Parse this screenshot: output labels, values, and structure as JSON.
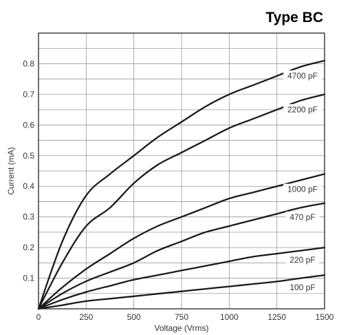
{
  "chart_data": {
    "type": "line",
    "title": "Type BC",
    "xlabel": "Voltage (Vrms)",
    "ylabel": "Current (mA)",
    "xlim": [
      0,
      1500
    ],
    "ylim": [
      0,
      0.9
    ],
    "xticks": [
      0,
      250,
      500,
      750,
      1000,
      1250,
      1500
    ],
    "xtick_labels": [
      "0",
      "250",
      "500",
      "750",
      "1000",
      "1250",
      "1500"
    ],
    "yticks": [
      0.1,
      0.2,
      0.3,
      0.4,
      0.5,
      0.6,
      0.7,
      0.8
    ],
    "ytick_labels": [
      "0.1",
      "0.2",
      "0.3",
      "0.4",
      "0.5",
      "0.6",
      "0.7",
      "0.8"
    ],
    "grid": true,
    "x": [
      0,
      125,
      250,
      375,
      500,
      625,
      750,
      875,
      1000,
      1125,
      1250,
      1375,
      1500
    ],
    "series": [
      {
        "name": "4700 pF",
        "values": [
          0,
          0.22,
          0.37,
          0.44,
          0.5,
          0.56,
          0.61,
          0.66,
          0.7,
          0.73,
          0.76,
          0.79,
          0.81
        ]
      },
      {
        "name": "2200 pF",
        "values": [
          0,
          0.15,
          0.27,
          0.33,
          0.41,
          0.47,
          0.51,
          0.55,
          0.59,
          0.62,
          0.65,
          0.68,
          0.7
        ]
      },
      {
        "name": "1000 pF",
        "values": [
          0,
          0.07,
          0.13,
          0.18,
          0.23,
          0.27,
          0.3,
          0.33,
          0.36,
          0.38,
          0.4,
          0.42,
          0.44
        ]
      },
      {
        "name": "470 pF",
        "values": [
          0,
          0.05,
          0.09,
          0.12,
          0.15,
          0.19,
          0.22,
          0.25,
          0.27,
          0.29,
          0.31,
          0.33,
          0.345
        ]
      },
      {
        "name": "220 pF",
        "values": [
          0,
          0.03,
          0.055,
          0.075,
          0.095,
          0.11,
          0.125,
          0.14,
          0.155,
          0.17,
          0.18,
          0.19,
          0.2
        ]
      },
      {
        "name": "100 pF",
        "values": [
          0,
          0.012,
          0.025,
          0.033,
          0.041,
          0.049,
          0.057,
          0.065,
          0.073,
          0.081,
          0.089,
          0.1,
          0.11
        ]
      }
    ],
    "line_color": "#1a1a1a",
    "grid_color": "#999999"
  }
}
